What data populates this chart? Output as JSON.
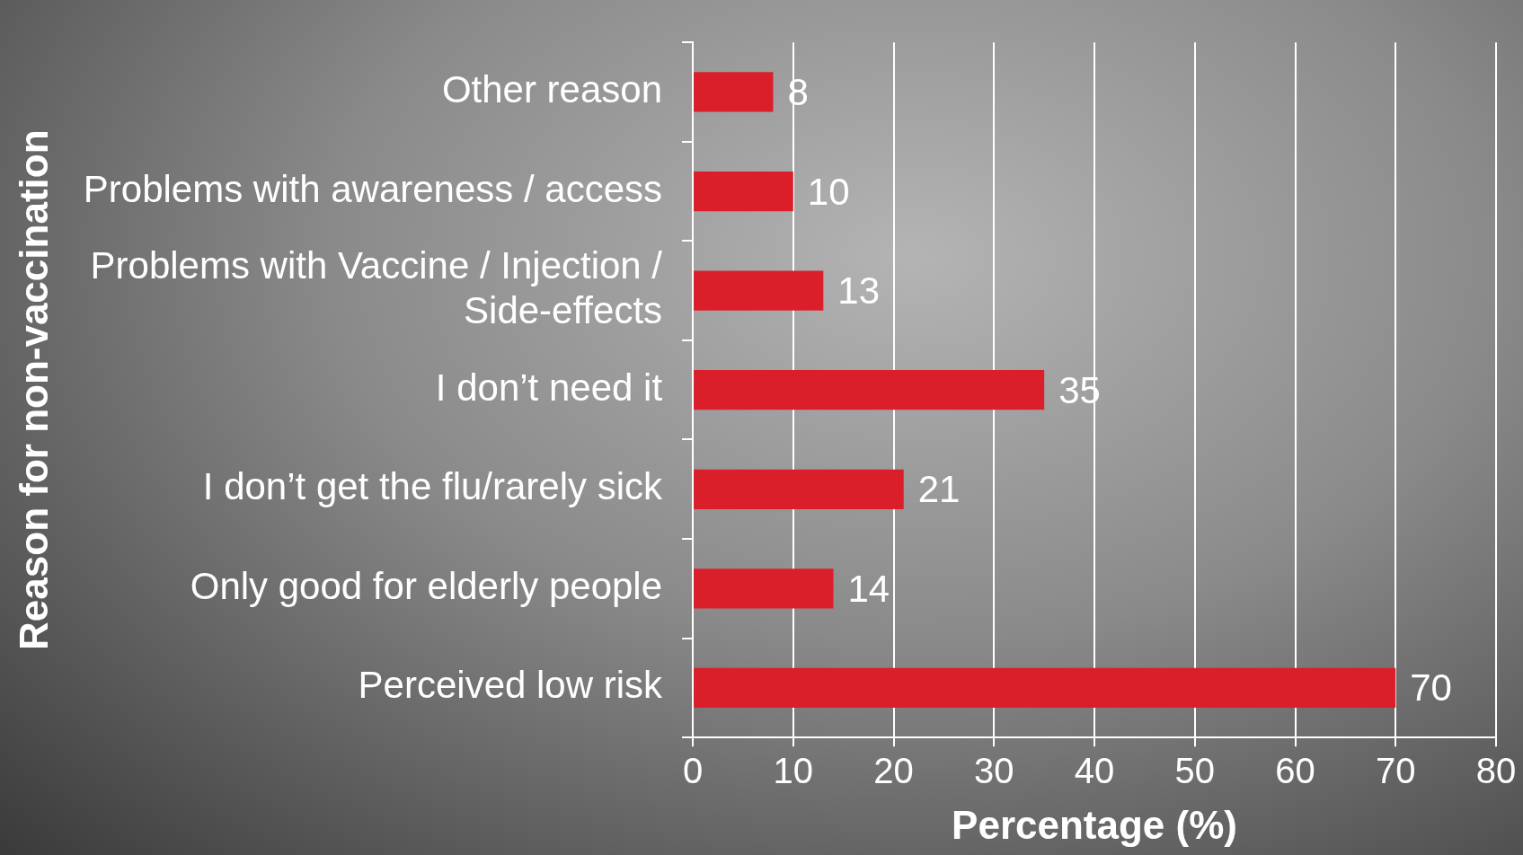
{
  "chart_data": {
    "type": "bar",
    "orientation": "horizontal",
    "xlabel": "Percentage (%)",
    "ylabel": "Reason for non-vaccination",
    "categories": [
      "Other reason",
      "Problems with awareness / access",
      "Problems with Vaccine / Injection / Side-effects",
      "I don’t need it",
      "I don’t get the flu/rarely sick",
      "Only good for elderly people",
      "Perceived low risk"
    ],
    "values": [
      8,
      10,
      13,
      35,
      21,
      14,
      70
    ],
    "color": "#da1f2a",
    "xlim": [
      0,
      80
    ],
    "xticks": [
      0,
      10,
      20,
      30,
      40,
      50,
      60,
      70,
      80
    ],
    "grid": "x",
    "data_labels": true
  }
}
